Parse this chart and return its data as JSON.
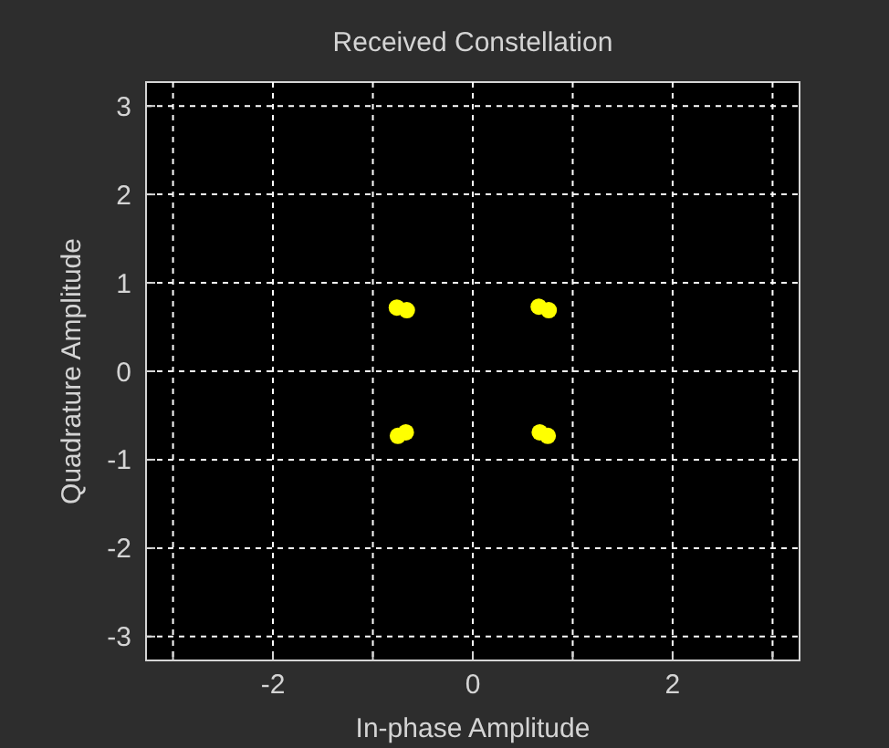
{
  "chart_data": {
    "type": "scatter",
    "title": "Received Constellation",
    "xlabel": "In-phase Amplitude",
    "ylabel": "Quadrature Amplitude",
    "x": [
      0.66,
      0.76,
      -0.76,
      -0.66,
      0.67,
      0.75,
      -0.75,
      -0.67
    ],
    "values": [
      0.73,
      0.69,
      0.72,
      0.69,
      -0.69,
      -0.73,
      -0.73,
      -0.69
    ],
    "color": "#ffff00",
    "marker": "circle",
    "grid": true,
    "xlim": [
      -3.27,
      3.27
    ],
    "ylim": [
      -3.27,
      3.27
    ],
    "xticks": [
      {
        "value": -3,
        "label": null
      },
      -2,
      {
        "value": -1,
        "label": null
      },
      0,
      {
        "value": 1,
        "label": null
      },
      2,
      {
        "value": 3,
        "label": null
      }
    ],
    "yticks": [
      -3,
      -2,
      -1,
      0,
      1,
      2,
      3
    ]
  }
}
